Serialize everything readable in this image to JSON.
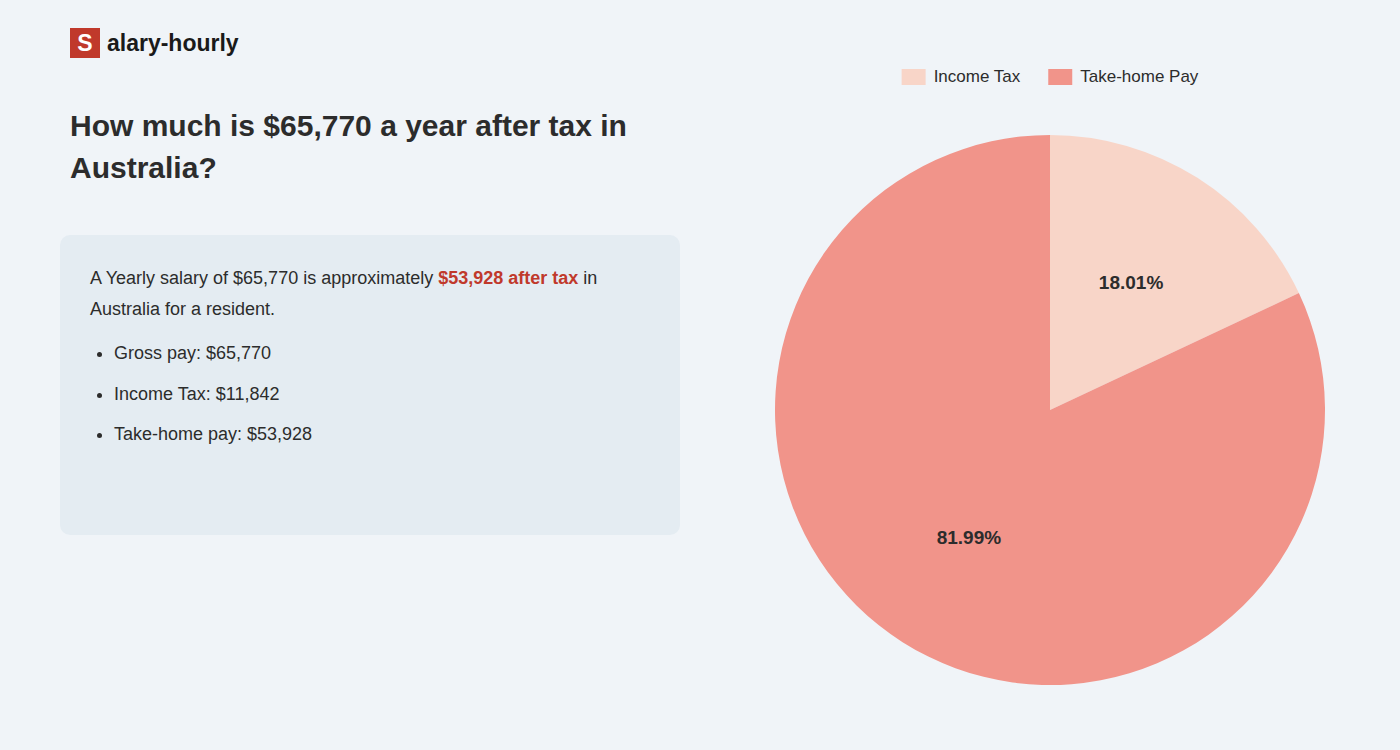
{
  "chart_data": {
    "type": "pie",
    "title": "How much is $65,770 a year after tax in Australia?",
    "categories": [
      "Income Tax",
      "Take-home Pay"
    ],
    "values": [
      18.01,
      81.99
    ],
    "value_labels": [
      "18.01%",
      "81.99%"
    ],
    "colors": [
      "#f8d5c8",
      "#f1948a"
    ],
    "data_labels": true,
    "legend": "top",
    "annotations": {
      "logo": [
        {
          "text": "S",
          "color": "#c0392b"
        },
        {
          "text": "alary-hourly"
        }
      ],
      "summary": [
        {
          "text": "A Yearly salary of $65,770 is approximately "
        },
        {
          "text": "$53,928 after tax",
          "color": "#c0392b"
        },
        {
          "text": " in"
        }
      ],
      "summary_line2": "Australia for a resident.",
      "bullets": [
        "Gross pay: $65,770",
        "Income Tax: $11,842",
        "Take-home pay: $53,928"
      ]
    }
  }
}
